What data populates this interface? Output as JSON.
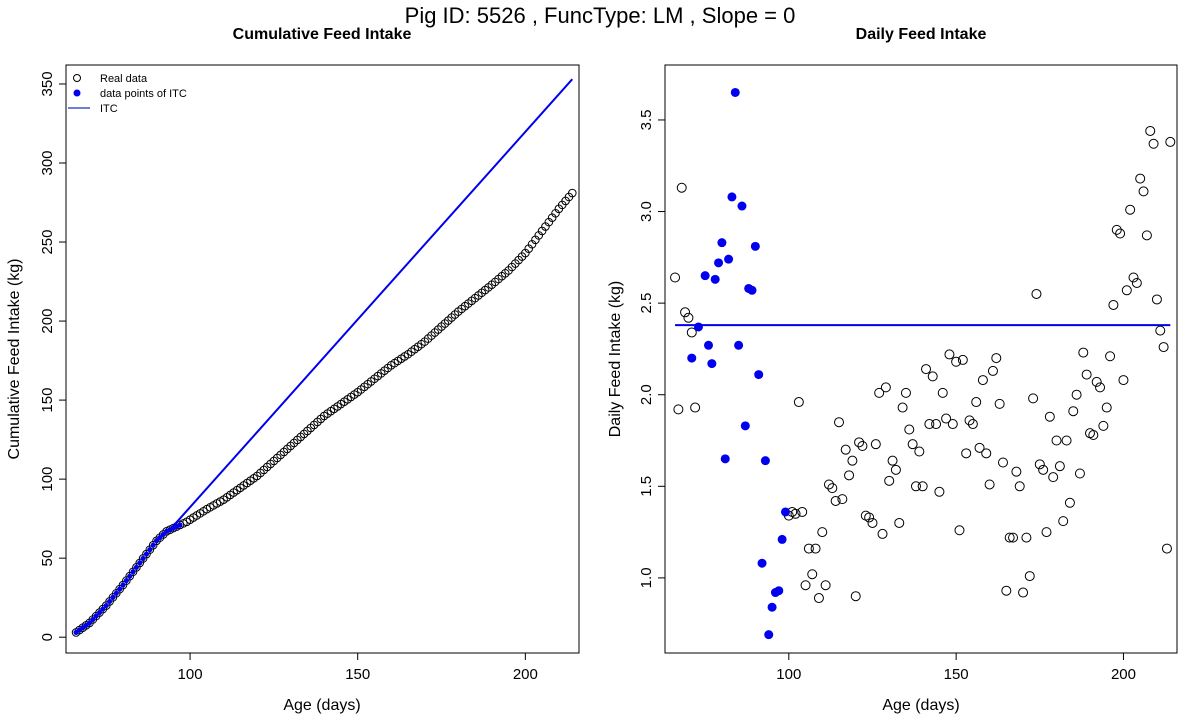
{
  "page_title": "Pig ID: 5526 , FuncType: LM , Slope = 0",
  "chart_data": [
    {
      "type": "scatter",
      "title": "Cumulative Feed Intake",
      "xlabel": "Age (days)",
      "ylabel": "Cumulative Feed Intake (kg)",
      "xlim": [
        63,
        216
      ],
      "ylim": [
        -10,
        362
      ],
      "xticks": [
        100,
        150,
        200
      ],
      "xtick_labels": [
        "100",
        "150",
        "200"
      ],
      "yticks": [
        0,
        50,
        100,
        150,
        200,
        250,
        300,
        350
      ],
      "ytick_labels": [
        "0",
        "50",
        "100",
        "150",
        "200",
        "250",
        "300",
        "350"
      ],
      "legend": {
        "position": "top-left",
        "entries": [
          "Real data",
          "data points of ITC",
          "ITC"
        ]
      },
      "colors": {
        "real": "#000000",
        "itc_points": "#0000ee",
        "itc_line": "#0000ee"
      },
      "cumulative_anchors": {
        "x": [
          66,
          70,
          75,
          80,
          85,
          90,
          93,
          96,
          99,
          105,
          110,
          120,
          130,
          140,
          150,
          160,
          165,
          170,
          180,
          190,
          195,
          200,
          205,
          210,
          214
        ],
        "y": [
          3,
          9,
          20,
          33,
          47,
          61,
          67,
          70,
          73,
          81,
          87,
          102,
          121,
          140,
          155,
          172,
          179,
          187,
          206,
          223,
          232,
          243,
          257,
          271,
          281
        ]
      },
      "itc_points_range": [
        66,
        97
      ],
      "itc_line": {
        "x": [
          94,
          214
        ],
        "y": [
          68,
          353
        ]
      }
    },
    {
      "type": "scatter",
      "title": "Daily Feed Intake",
      "xlabel": "Age (days)",
      "ylabel": "Daily Feed Intake (kg)",
      "xlim": [
        63,
        216
      ],
      "ylim": [
        0.59,
        3.8
      ],
      "xticks": [
        100,
        150,
        200
      ],
      "xtick_labels": [
        "100",
        "150",
        "200"
      ],
      "yticks": [
        1.0,
        1.5,
        2.0,
        2.5,
        3.0,
        3.5
      ],
      "ytick_labels": [
        "1.0",
        "1.5",
        "2.0",
        "2.5",
        "3.0",
        "3.5"
      ],
      "itc_points": {
        "x": [
          71,
          73,
          75,
          76,
          77,
          78,
          79,
          80,
          81,
          82,
          83,
          84,
          85,
          86,
          87,
          88,
          89,
          90,
          91,
          92,
          93,
          94,
          95,
          96,
          97,
          98,
          99
        ],
        "y": [
          2.2,
          2.37,
          2.65,
          2.27,
          2.17,
          2.63,
          2.72,
          2.83,
          1.65,
          2.74,
          3.08,
          3.65,
          2.27,
          3.03,
          1.83,
          2.58,
          2.57,
          2.81,
          2.11,
          1.08,
          1.64,
          0.69,
          0.84,
          0.92,
          0.93,
          1.21,
          1.36
        ]
      },
      "real_points": {
        "x": [
          66,
          67,
          68,
          69,
          70,
          71,
          72,
          100,
          101,
          102,
          103,
          104,
          105,
          106,
          107,
          108,
          109,
          110,
          111,
          112,
          113,
          114,
          115,
          116,
          117,
          118,
          119,
          120,
          121,
          122,
          123,
          124,
          125,
          126,
          127,
          128,
          129,
          130,
          131,
          132,
          133,
          134,
          135,
          136,
          137,
          138,
          139,
          140,
          141,
          142,
          143,
          144,
          145,
          146,
          147,
          148,
          149,
          150,
          151,
          152,
          153,
          154,
          155,
          156,
          157,
          158,
          159,
          160,
          161,
          162,
          163,
          164,
          165,
          166,
          167,
          168,
          169,
          170,
          171,
          172,
          173,
          174,
          175,
          176,
          177,
          178,
          179,
          180,
          181,
          182,
          183,
          184,
          185,
          186,
          187,
          188,
          189,
          190,
          191,
          192,
          193,
          194,
          195,
          196,
          197,
          198,
          199,
          200,
          201,
          202,
          203,
          204,
          205,
          206,
          207,
          208,
          209,
          210,
          211,
          212,
          213,
          214
        ],
        "y": [
          2.64,
          1.92,
          3.13,
          2.45,
          2.42,
          2.34,
          1.93,
          1.34,
          1.36,
          1.35,
          1.96,
          1.36,
          0.96,
          1.16,
          1.02,
          1.16,
          0.89,
          1.25,
          0.96,
          1.51,
          1.49,
          1.42,
          1.85,
          1.43,
          1.7,
          1.56,
          1.64,
          0.9,
          1.74,
          1.72,
          1.34,
          1.33,
          1.3,
          1.73,
          2.01,
          1.24,
          2.04,
          1.53,
          1.64,
          1.59,
          1.3,
          1.93,
          2.01,
          1.81,
          1.73,
          1.5,
          1.69,
          1.5,
          2.14,
          1.84,
          2.1,
          1.84,
          1.47,
          2.01,
          1.87,
          2.22,
          1.84,
          2.18,
          1.26,
          2.19,
          1.68,
          1.86,
          1.84,
          1.96,
          1.71,
          2.08,
          1.68,
          1.51,
          2.13,
          2.2,
          1.95,
          1.63,
          0.93,
          1.22,
          1.22,
          1.58,
          1.5,
          0.92,
          1.22,
          1.01,
          1.98,
          2.55,
          1.62,
          1.59,
          1.25,
          1.88,
          1.55,
          1.75,
          1.61,
          1.31,
          1.75,
          1.41,
          1.91,
          2.0,
          1.57,
          2.23,
          2.11,
          1.79,
          1.78,
          2.07,
          2.04,
          1.83,
          1.93,
          2.21,
          2.49,
          2.9,
          2.88,
          2.08,
          2.57,
          3.01,
          2.64,
          2.61,
          3.18,
          3.11,
          2.87,
          3.44,
          3.37,
          2.52,
          2.35,
          2.26,
          1.16,
          3.38
        ]
      },
      "itc_line": {
        "x": [
          66,
          214
        ],
        "y": [
          2.38,
          2.38
        ]
      }
    }
  ]
}
